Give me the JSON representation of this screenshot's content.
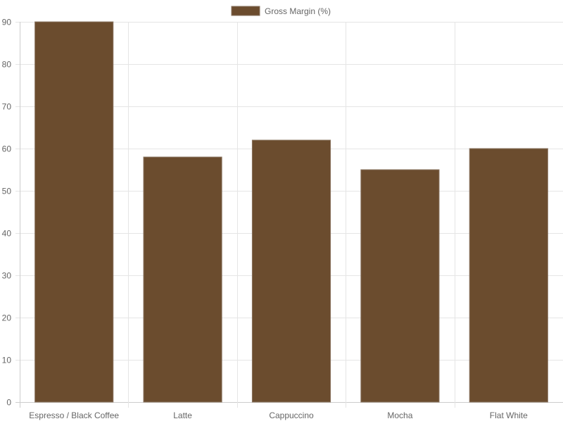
{
  "chart_data": {
    "type": "bar",
    "categories": [
      "Espresso / Black Coffee",
      "Latte",
      "Cappuccino",
      "Mocha",
      "Flat White"
    ],
    "series": [
      {
        "name": "Gross Margin (%)",
        "values": [
          90,
          58,
          62,
          55,
          60
        ],
        "color": "#6b4c2e"
      }
    ],
    "ylim": [
      0,
      90
    ],
    "yticks": [
      0,
      10,
      20,
      30,
      40,
      50,
      60,
      70,
      80,
      90
    ],
    "grid": true,
    "legend": "top-center"
  },
  "colors": {
    "bar_fill": "#6b4c2e",
    "bar_border": "#8a7460",
    "grid": "#e5e5e5",
    "axis": "#cccccc",
    "text": "#666666"
  }
}
